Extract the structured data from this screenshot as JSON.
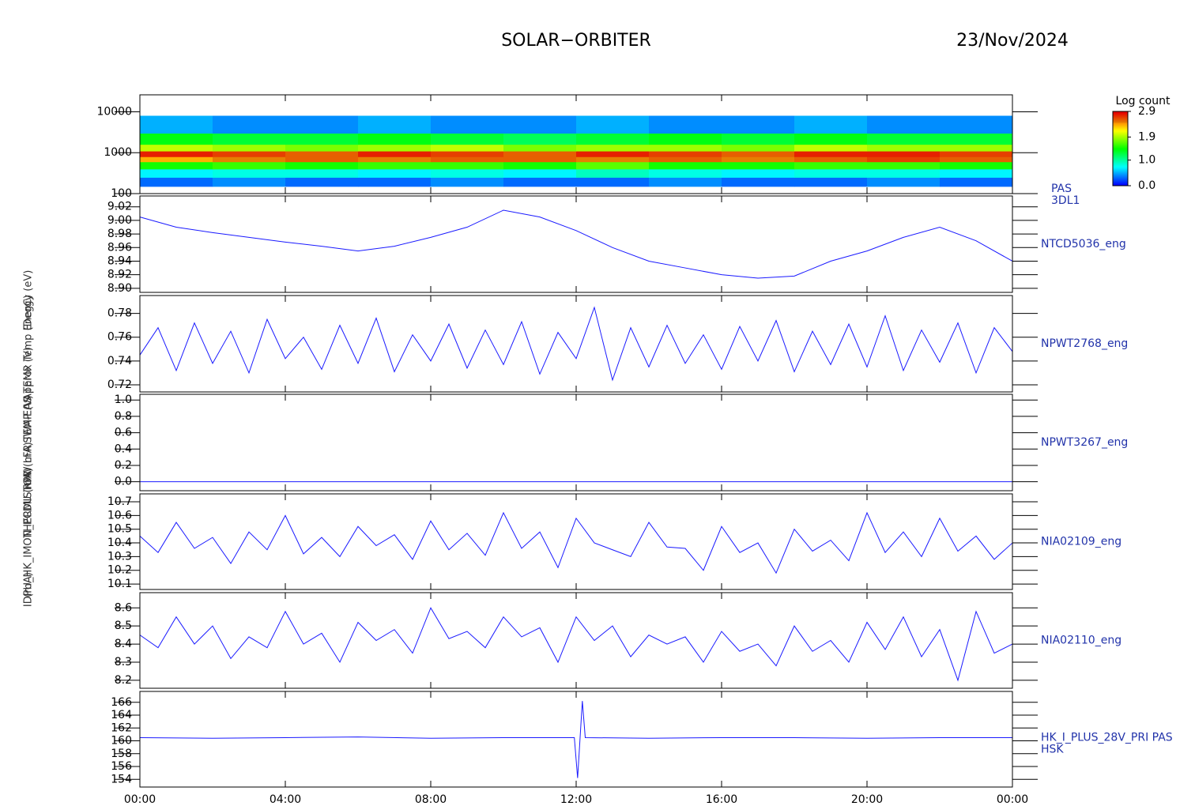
{
  "title": "SOLAR−ORBITER",
  "date": "23/Nov/2024",
  "chart_data": [
    {
      "type": "heatmap",
      "ylabel": "Energy (eV)",
      "label_lines": [
        "PAS",
        "3DL1"
      ],
      "log": true,
      "ylim": [
        100,
        26000
      ],
      "yticks": [
        100,
        1000,
        10000
      ],
      "xlim": [
        0,
        24
      ],
      "colormap": "rainbow",
      "x_edges": [
        0,
        2,
        4,
        6,
        8,
        10,
        12,
        14,
        16,
        18,
        20,
        22,
        24
      ],
      "energy_edges": [
        150,
        250,
        400,
        600,
        800,
        1100,
        1600,
        3000,
        8000
      ],
      "z": [
        [
          0.3,
          0.4,
          0.3,
          0.3,
          0.4,
          0.3,
          0.3,
          0.4,
          0.3,
          0.3,
          0.4,
          0.3
        ],
        [
          0.7,
          0.8,
          0.8,
          0.7,
          0.8,
          0.7,
          0.9,
          0.8,
          0.7,
          0.8,
          0.8,
          0.7
        ],
        [
          1.5,
          1.6,
          1.5,
          1.6,
          1.6,
          1.5,
          1.7,
          1.5,
          1.5,
          1.6,
          1.6,
          1.5
        ],
        [
          2.4,
          2.5,
          2.6,
          2.5,
          2.6,
          2.6,
          2.5,
          2.6,
          2.5,
          2.6,
          2.7,
          2.6
        ],
        [
          2.8,
          2.7,
          2.6,
          2.8,
          2.7,
          2.6,
          2.8,
          2.7,
          2.6,
          2.8,
          2.8,
          2.7
        ],
        [
          2.0,
          1.9,
          1.8,
          1.9,
          2.0,
          1.8,
          1.9,
          1.9,
          1.8,
          2.0,
          1.9,
          1.9
        ],
        [
          1.4,
          1.3,
          1.3,
          1.4,
          1.3,
          1.2,
          1.3,
          1.4,
          1.3,
          1.4,
          1.3,
          1.3
        ],
        [
          0.5,
          0.4,
          0.4,
          0.5,
          0.4,
          0.4,
          0.5,
          0.4,
          0.4,
          0.5,
          0.4,
          0.4
        ]
      ],
      "colorbar_title": "Log count",
      "clim": [
        0,
        2.9
      ],
      "cticks": [
        {
          "value": 0,
          "label": "0.0"
        },
        {
          "value": 1,
          "label": "1.0"
        },
        1.9,
        2.9
      ]
    },
    {
      "type": "line",
      "ylabel": "Approx Temp (DegC)",
      "label_lines": [
        "NTCD5036_eng"
      ],
      "color": "#1a1aff",
      "ylim": [
        8.894,
        9.036
      ],
      "yticks": [
        {
          "value": 8.9,
          "label": "8.90"
        },
        8.92,
        8.94,
        8.96,
        8.98,
        {
          "value": 9,
          "label": "9.00"
        },
        9.02
      ],
      "xlim": [
        0,
        24
      ],
      "x": [
        0,
        1,
        2,
        3,
        4,
        5,
        6,
        7,
        8,
        9,
        10,
        11,
        12,
        13,
        14,
        15,
        16,
        17,
        18,
        19,
        20,
        21,
        22,
        23,
        24
      ],
      "values": [
        9.005,
        8.99,
        8.982,
        8.975,
        8.968,
        8.962,
        8.955,
        8.962,
        8.975,
        8.99,
        9.015,
        9.005,
        8.985,
        8.96,
        8.94,
        8.93,
        8.92,
        8.915,
        8.918,
        8.94,
        8.955,
        8.975,
        8.99,
        8.97,
        8.94
      ]
    },
    {
      "type": "line",
      "ylabel": "SWA-EAS TEMP (V)",
      "label_lines": [
        "NPWT2768_eng"
      ],
      "color": "#1a1aff",
      "ylim": [
        0.714,
        0.795
      ],
      "yticks": [
        0.72,
        0.74,
        0.76,
        0.78
      ],
      "xlim": [
        0,
        24
      ],
      "x": [
        0,
        0.5,
        1,
        1.5,
        2,
        2.5,
        3,
        3.5,
        4,
        4.5,
        5,
        5.5,
        6,
        6.5,
        7,
        7.5,
        8,
        8.5,
        9,
        9.5,
        10,
        10.5,
        11,
        11.5,
        12,
        12.5,
        13,
        13.5,
        14,
        14.5,
        15,
        15.5,
        16,
        16.5,
        17,
        17.5,
        18,
        18.5,
        19,
        19.5,
        20,
        20.5,
        21,
        21.5,
        22,
        22.5,
        23,
        23.5,
        24
      ],
      "values": [
        0.745,
        0.768,
        0.732,
        0.772,
        0.738,
        0.765,
        0.73,
        0.775,
        0.742,
        0.76,
        0.733,
        0.77,
        0.738,
        0.776,
        0.731,
        0.762,
        0.74,
        0.771,
        0.734,
        0.766,
        0.737,
        0.773,
        0.729,
        0.764,
        0.742,
        0.785,
        0.724,
        0.768,
        0.735,
        0.77,
        0.738,
        0.762,
        0.733,
        0.769,
        0.74,
        0.774,
        0.731,
        0.765,
        0.737,
        0.771,
        0.735,
        0.778,
        0.732,
        0.766,
        0.739,
        0.772,
        0.73,
        0.768,
        0.748
      ]
    },
    {
      "type": "line",
      "ylabel": "RPW LFR TEMP (V)",
      "label_lines": [
        "NPWT3267_eng"
      ],
      "color": "#1a1aff",
      "ylim": [
        -0.11,
        1.07
      ],
      "yticks": [
        {
          "value": 0,
          "label": "0.0"
        },
        0.2,
        0.4,
        0.6,
        0.8,
        {
          "value": 1,
          "label": "1.0"
        }
      ],
      "xlim": [
        0,
        24
      ],
      "x": [
        0,
        1,
        2,
        3,
        4,
        5,
        6,
        7,
        8,
        9,
        10,
        11,
        12,
        13,
        14,
        15,
        16,
        17,
        18,
        19,
        20,
        21,
        22,
        23,
        24
      ],
      "values": [
        0,
        0,
        0,
        0,
        0,
        0,
        0,
        0,
        0,
        0,
        0,
        0,
        0,
        0,
        0,
        0,
        0,
        0,
        0,
        0,
        0,
        0,
        0,
        0,
        0
      ]
    },
    {
      "type": "line",
      "ylabel": "THERMISTOR (mA)",
      "label_lines": [
        "NIA02109_eng"
      ],
      "color": "#1a1aff",
      "ylim": [
        10.06,
        10.758
      ],
      "yticks": [
        10.1,
        10.2,
        10.3,
        10.4,
        10.5,
        10.6,
        10.7
      ],
      "xlim": [
        0,
        24
      ],
      "x": [
        0,
        0.5,
        1,
        1.5,
        2,
        2.5,
        3,
        3.5,
        4,
        4.5,
        5,
        5.5,
        6,
        6.5,
        7,
        7.5,
        8,
        8.5,
        9,
        9.5,
        10,
        10.5,
        11,
        11.5,
        12,
        12.5,
        13,
        13.5,
        14,
        14.5,
        15,
        15.5,
        16,
        16.5,
        17,
        17.5,
        18,
        18.5,
        19,
        19.5,
        20,
        20.5,
        21,
        21.5,
        22,
        22.5,
        23,
        23.5,
        24
      ],
      "values": [
        10.45,
        10.33,
        10.55,
        10.36,
        10.44,
        10.25,
        10.48,
        10.35,
        10.6,
        10.32,
        10.44,
        10.3,
        10.52,
        10.38,
        10.46,
        10.28,
        10.56,
        10.35,
        10.47,
        10.31,
        10.62,
        10.36,
        10.48,
        10.22,
        10.58,
        10.4,
        10.35,
        10.3,
        10.55,
        10.37,
        10.36,
        10.2,
        10.52,
        10.33,
        10.4,
        10.18,
        10.5,
        10.34,
        10.42,
        10.27,
        10.62,
        10.33,
        10.48,
        10.3,
        10.58,
        10.34,
        10.45,
        10.28,
        10.4
      ]
    },
    {
      "type": "line",
      "ylabel": "IDPU_HK_IMON_PCDU (mA)",
      "label_lines": [
        "NIA02110_eng"
      ],
      "color": "#1a1aff",
      "ylim": [
        8.156,
        8.684
      ],
      "yticks": [
        8.2,
        8.3,
        8.4,
        8.5,
        8.6
      ],
      "xlim": [
        0,
        24
      ],
      "x": [
        0,
        0.5,
        1,
        1.5,
        2,
        2.5,
        3,
        3.5,
        4,
        4.5,
        5,
        5.5,
        6,
        6.5,
        7,
        7.5,
        8,
        8.5,
        9,
        9.5,
        10,
        10.5,
        11,
        11.5,
        12,
        12.5,
        13,
        13.5,
        14,
        14.5,
        15,
        15.5,
        16,
        16.5,
        17,
        17.5,
        18,
        18.5,
        19,
        19.5,
        20,
        20.5,
        21,
        21.5,
        22,
        22.5,
        23,
        23.5,
        24
      ],
      "values": [
        8.45,
        8.38,
        8.55,
        8.4,
        8.5,
        8.32,
        8.44,
        8.38,
        8.58,
        8.4,
        8.46,
        8.3,
        8.52,
        8.42,
        8.48,
        8.35,
        8.6,
        8.43,
        8.47,
        8.38,
        8.55,
        8.44,
        8.49,
        8.3,
        8.55,
        8.42,
        8.5,
        8.33,
        8.45,
        8.4,
        8.44,
        8.3,
        8.47,
        8.36,
        8.4,
        8.28,
        8.5,
        8.36,
        8.42,
        8.3,
        8.52,
        8.37,
        8.55,
        8.33,
        8.48,
        8.2,
        8.58,
        8.35,
        8.4
      ]
    },
    {
      "type": "line",
      "ylabel": "(mA)",
      "label_lines": [
        "HK_I_PLUS_28V_PRI PAS",
        "HSK"
      ],
      "color": "#1a1aff",
      "ylim": [
        152.8,
        167.7
      ],
      "yticks": [
        154,
        156,
        158,
        160,
        162,
        164,
        166
      ],
      "xlim": [
        0,
        24
      ],
      "xticks": [
        {
          "value": 0,
          "label": "00:00"
        },
        {
          "value": 4,
          "label": "04:00"
        },
        {
          "value": 8,
          "label": "08:00"
        },
        {
          "value": 12,
          "label": "12:00"
        },
        {
          "value": 16,
          "label": "16:00"
        },
        {
          "value": 20,
          "label": "20:00"
        },
        {
          "value": 24,
          "label": "00:00"
        }
      ],
      "x": [
        0,
        2,
        4,
        6,
        8,
        10,
        11.95,
        12.04,
        12.17,
        12.25,
        14,
        16,
        18,
        20,
        22,
        24
      ],
      "values": [
        160.5,
        160.4,
        160.5,
        160.6,
        160.4,
        160.5,
        160.5,
        154.2,
        166.2,
        160.5,
        160.4,
        160.5,
        160.5,
        160.4,
        160.5,
        160.5
      ]
    }
  ]
}
